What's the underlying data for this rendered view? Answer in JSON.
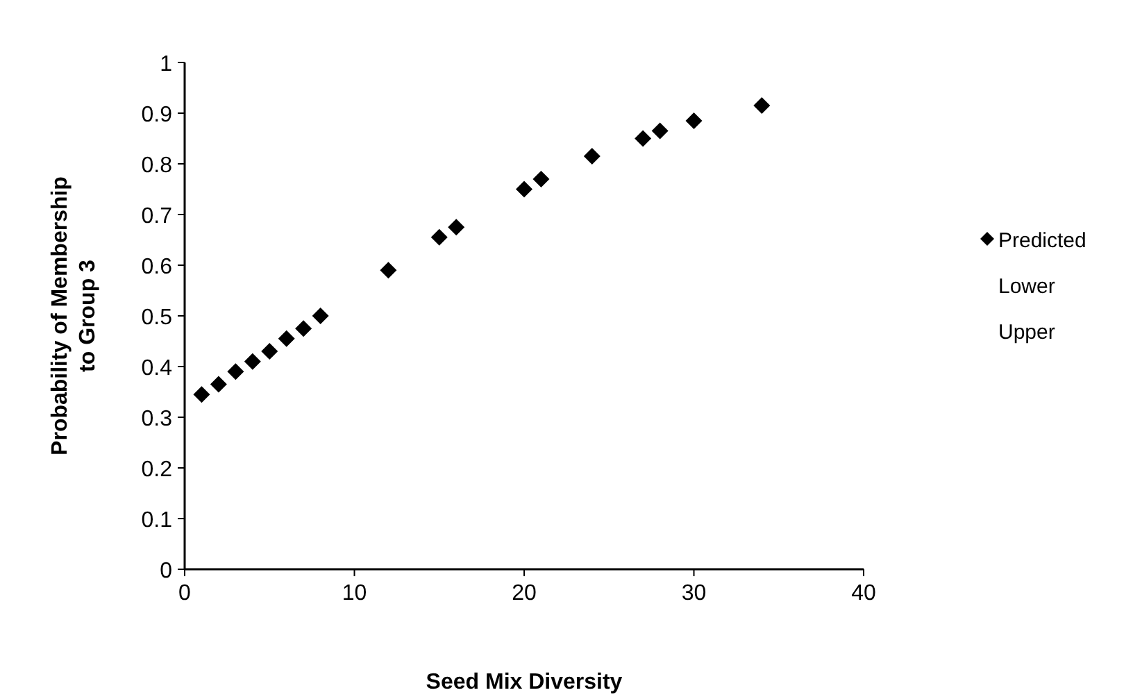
{
  "chart_data": {
    "type": "scatter",
    "xlabel": "Seed Mix Diversity",
    "ylabel": "Probability of Membership\nto Group 3",
    "x": [
      1,
      2,
      3,
      4,
      5,
      6,
      7,
      8,
      12,
      15,
      16,
      20,
      21,
      24,
      27,
      28,
      30,
      34
    ],
    "series": [
      {
        "name": "Predicted",
        "color": "#000000",
        "marker": "diamond",
        "values": [
          0.345,
          0.365,
          0.39,
          0.41,
          0.43,
          0.455,
          0.475,
          0.5,
          0.59,
          0.655,
          0.675,
          0.75,
          0.77,
          0.815,
          0.85,
          0.865,
          0.885,
          0.915
        ]
      },
      {
        "name": "Lower",
        "marker": "none",
        "values": [
          null,
          null,
          null,
          null,
          null,
          null,
          null,
          null,
          null,
          null,
          null,
          null,
          null,
          null,
          null,
          null,
          null,
          null
        ]
      },
      {
        "name": "Upper",
        "marker": "none",
        "values": [
          null,
          null,
          null,
          null,
          null,
          null,
          null,
          null,
          null,
          null,
          null,
          null,
          null,
          null,
          null,
          null,
          null,
          null
        ]
      }
    ],
    "xlim": [
      0,
      40
    ],
    "xticks": [
      0,
      10,
      20,
      30,
      40
    ],
    "ylim": [
      0,
      1
    ],
    "yticks": [
      0,
      0.1,
      0.2,
      0.3,
      0.4,
      0.5,
      0.6,
      0.7,
      0.8,
      0.9,
      1
    ],
    "grid": false,
    "legend": "right"
  }
}
